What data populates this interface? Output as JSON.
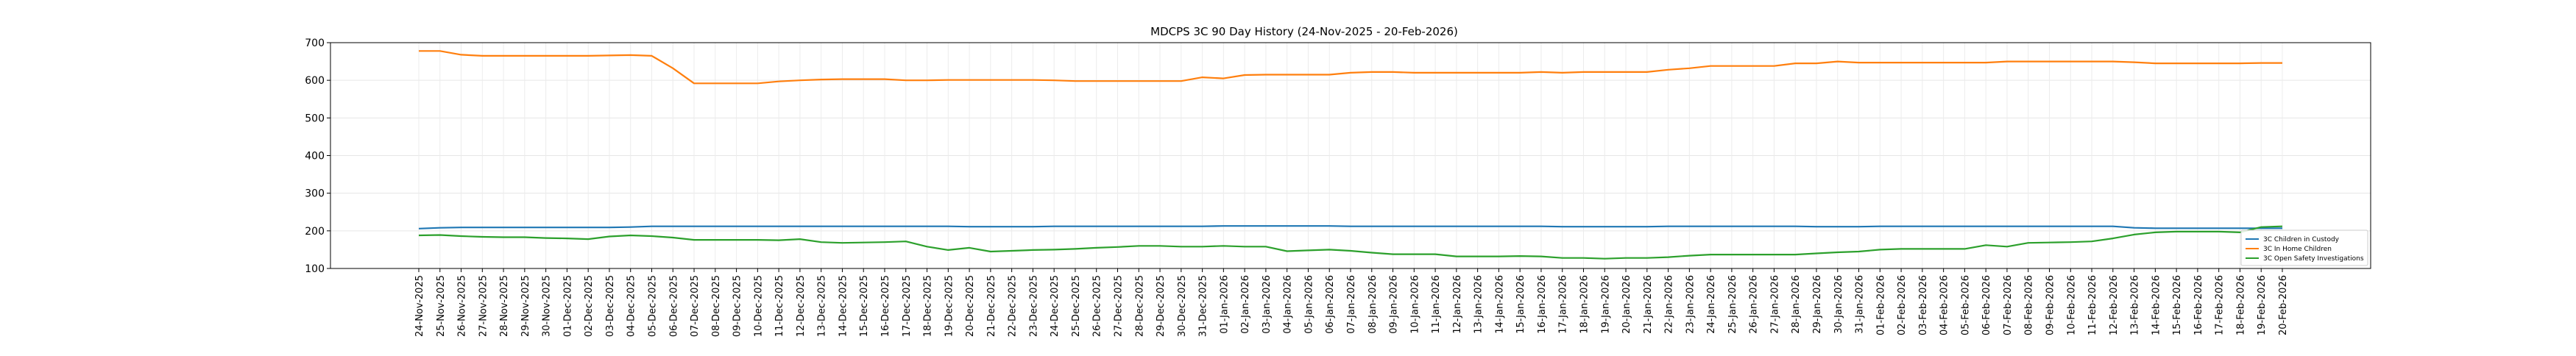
{
  "chart_data": {
    "type": "line",
    "title": "MDCPS 3C 90 Day History (24-Nov-2025 - 20-Feb-2026)",
    "xlabel": "",
    "ylabel": "",
    "ylim": [
      100,
      700
    ],
    "yticks": [
      100,
      200,
      300,
      400,
      500,
      600,
      700
    ],
    "grid": true,
    "legend_position": "lower-right",
    "x": [
      "24-Nov-2025",
      "25-Nov-2025",
      "26-Nov-2025",
      "27-Nov-2025",
      "28-Nov-2025",
      "29-Nov-2025",
      "30-Nov-2025",
      "01-Dec-2025",
      "02-Dec-2025",
      "03-Dec-2025",
      "04-Dec-2025",
      "05-Dec-2025",
      "06-Dec-2025",
      "07-Dec-2025",
      "08-Dec-2025",
      "09-Dec-2025",
      "10-Dec-2025",
      "11-Dec-2025",
      "12-Dec-2025",
      "13-Dec-2025",
      "14-Dec-2025",
      "15-Dec-2025",
      "16-Dec-2025",
      "17-Dec-2025",
      "18-Dec-2025",
      "19-Dec-2025",
      "20-Dec-2025",
      "21-Dec-2025",
      "22-Dec-2025",
      "23-Dec-2025",
      "24-Dec-2025",
      "25-Dec-2025",
      "26-Dec-2025",
      "27-Dec-2025",
      "28-Dec-2025",
      "29-Dec-2025",
      "30-Dec-2025",
      "31-Dec-2025",
      "01-Jan-2026",
      "02-Jan-2026",
      "03-Jan-2026",
      "04-Jan-2026",
      "05-Jan-2026",
      "06-Jan-2026",
      "07-Jan-2026",
      "08-Jan-2026",
      "09-Jan-2026",
      "10-Jan-2026",
      "11-Jan-2026",
      "12-Jan-2026",
      "13-Jan-2026",
      "14-Jan-2026",
      "15-Jan-2026",
      "16-Jan-2026",
      "17-Jan-2026",
      "18-Jan-2026",
      "19-Jan-2026",
      "20-Jan-2026",
      "21-Jan-2026",
      "22-Jan-2026",
      "23-Jan-2026",
      "24-Jan-2026",
      "25-Jan-2026",
      "26-Jan-2026",
      "27-Jan-2026",
      "28-Jan-2026",
      "29-Jan-2026",
      "30-Jan-2026",
      "31-Jan-2026",
      "01-Feb-2026",
      "02-Feb-2026",
      "03-Feb-2026",
      "04-Feb-2026",
      "05-Feb-2026",
      "06-Feb-2026",
      "07-Feb-2026",
      "08-Feb-2026",
      "09-Feb-2026",
      "10-Feb-2026",
      "11-Feb-2026",
      "12-Feb-2026",
      "13-Feb-2026",
      "14-Feb-2026",
      "15-Feb-2026",
      "16-Feb-2026",
      "17-Feb-2026",
      "18-Feb-2026",
      "19-Feb-2026",
      "20-Feb-2026"
    ],
    "series": [
      {
        "name": "3C Children in Custody",
        "color": "#1f77b4",
        "values": [
          206,
          208,
          209,
          209,
          209,
          209,
          209,
          209,
          209,
          209,
          210,
          212,
          212,
          212,
          212,
          212,
          212,
          212,
          212,
          212,
          212,
          212,
          212,
          212,
          212,
          212,
          211,
          211,
          211,
          211,
          212,
          212,
          212,
          212,
          212,
          212,
          212,
          212,
          213,
          213,
          213,
          213,
          213,
          213,
          212,
          212,
          212,
          212,
          212,
          212,
          212,
          212,
          212,
          212,
          211,
          211,
          211,
          211,
          211,
          212,
          212,
          212,
          212,
          212,
          212,
          212,
          211,
          211,
          211,
          212,
          212,
          212,
          212,
          212,
          212,
          212,
          212,
          212,
          212,
          212,
          212,
          208,
          207,
          207,
          207,
          207,
          207,
          207,
          207
        ]
      },
      {
        "name": "3C In Home Children",
        "color": "#ff7f0e",
        "values": [
          678,
          678,
          668,
          665,
          665,
          665,
          665,
          665,
          665,
          666,
          667,
          665,
          632,
          592,
          592,
          592,
          592,
          597,
          600,
          602,
          603,
          603,
          603,
          600,
          600,
          601,
          601,
          601,
          601,
          601,
          600,
          598,
          598,
          598,
          598,
          598,
          598,
          608,
          605,
          614,
          615,
          615,
          615,
          615,
          620,
          622,
          622,
          620,
          620,
          620,
          620,
          620,
          620,
          622,
          620,
          622,
          622,
          622,
          622,
          628,
          632,
          638,
          638,
          638,
          638,
          645,
          645,
          650,
          647,
          647,
          647,
          647,
          647,
          647,
          647,
          650,
          650,
          650,
          650,
          650,
          650,
          648,
          645,
          645,
          645,
          645,
          645,
          646,
          646
        ]
      },
      {
        "name": "3C Open Safety Investigations",
        "color": "#2ca02c",
        "values": [
          188,
          189,
          186,
          184,
          183,
          183,
          181,
          180,
          178,
          185,
          188,
          186,
          182,
          176,
          176,
          176,
          176,
          175,
          178,
          170,
          168,
          169,
          170,
          172,
          158,
          149,
          155,
          145,
          147,
          149,
          150,
          152,
          155,
          157,
          160,
          160,
          158,
          158,
          160,
          158,
          158,
          146,
          148,
          150,
          147,
          142,
          138,
          138,
          138,
          132,
          132,
          132,
          133,
          132,
          128,
          128,
          126,
          128,
          128,
          130,
          134,
          137,
          137,
          137,
          137,
          137,
          140,
          143,
          145,
          150,
          152,
          152,
          152,
          152,
          162,
          158,
          168,
          169,
          170,
          172,
          180,
          190,
          196,
          198,
          198,
          198,
          196,
          210,
          212
        ]
      }
    ]
  }
}
